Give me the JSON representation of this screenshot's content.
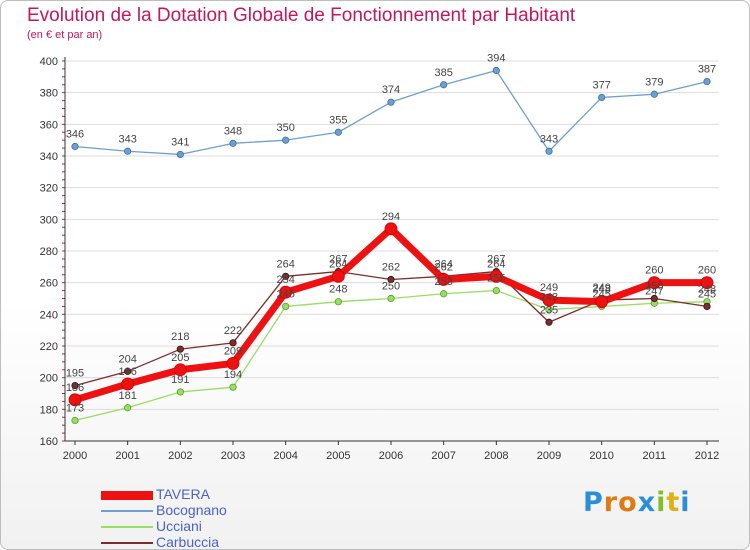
{
  "title": "Evolution de la Dotation Globale de Fonctionnement par Habitant",
  "subtitle": "(en € et par an)",
  "logo": "Proxiti",
  "chart_data": {
    "type": "line",
    "title": "Evolution de la Dotation Globale de Fonctionnement par Habitant",
    "ylabel": "(en € et par an)",
    "xlabel": "",
    "x": [
      "2000",
      "2001",
      "2002",
      "2003",
      "2004",
      "2005",
      "2006",
      "2007",
      "2008",
      "2009",
      "2010",
      "2011",
      "2012"
    ],
    "ylim": [
      160,
      400
    ],
    "yticks": [
      160,
      180,
      200,
      220,
      240,
      260,
      280,
      300,
      320,
      340,
      360,
      380,
      400
    ],
    "grid": "horizontal",
    "legend_position": "bottom-left",
    "series": [
      {
        "name": "TAVERA",
        "color": "#ee1111",
        "values": [
          186,
          196,
          205,
          209,
          254,
          264,
          294,
          262,
          264,
          249,
          248,
          260,
          260
        ]
      },
      {
        "name": "Bocognano",
        "color": "#6f9fd0",
        "values": [
          346,
          343,
          341,
          348,
          350,
          355,
          374,
          385,
          394,
          343,
          377,
          379,
          387
        ]
      },
      {
        "name": "Ucciani",
        "color": "#99dd66",
        "values": [
          173,
          181,
          191,
          194,
          245,
          248,
          250,
          253,
          255,
          243,
          245,
          247,
          248
        ]
      },
      {
        "name": "Carbuccia",
        "color": "#7a2e2e",
        "values": [
          195,
          204,
          218,
          222,
          264,
          267,
          262,
          264,
          267,
          235,
          249,
          250,
          245
        ]
      }
    ]
  }
}
